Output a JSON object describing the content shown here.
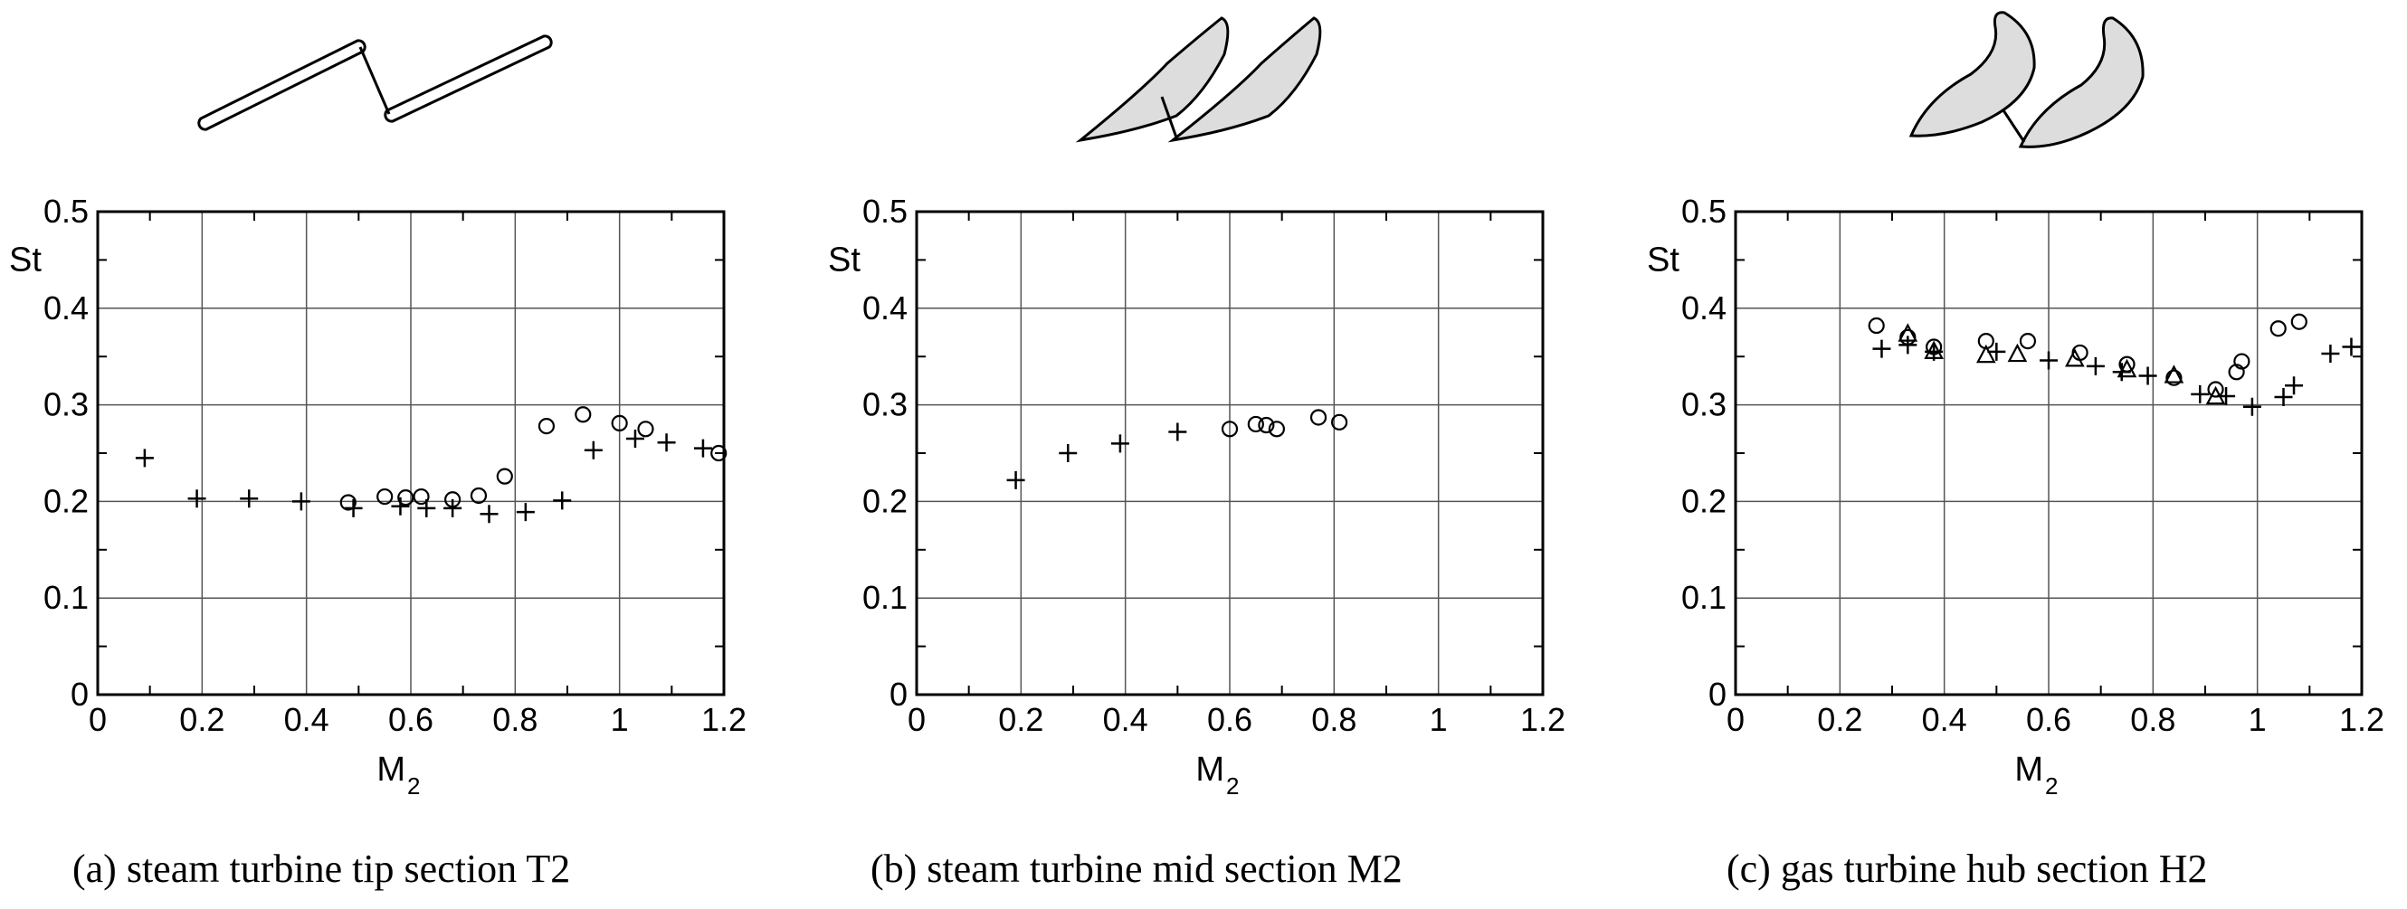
{
  "figure": {
    "captions": [
      "(a) steam turbine tip section T2",
      "(b) steam turbine mid section M2",
      "(c) gas turbine hub section H2"
    ]
  },
  "chart_data": [
    {
      "type": "scatter",
      "xlabel": "M",
      "xlabel_sub": "2",
      "ylabel": "St",
      "xlim": [
        0,
        1.2
      ],
      "ylim": [
        0,
        0.5
      ],
      "xticks": [
        "0",
        "0.2",
        "0.4",
        "0.6",
        "0.8",
        "1",
        "1.2"
      ],
      "yticks": [
        "0",
        "0.1",
        "0.2",
        "0.3",
        "0.4",
        "0.5"
      ],
      "grid": true,
      "series": [
        {
          "marker": "plus",
          "points": [
            [
              0.09,
              0.245
            ],
            [
              0.19,
              0.203
            ],
            [
              0.29,
              0.203
            ],
            [
              0.39,
              0.2
            ],
            [
              0.49,
              0.193
            ],
            [
              0.58,
              0.195
            ],
            [
              0.63,
              0.193
            ],
            [
              0.68,
              0.193
            ],
            [
              0.75,
              0.187
            ],
            [
              0.82,
              0.189
            ],
            [
              0.89,
              0.201
            ],
            [
              0.95,
              0.253
            ],
            [
              1.03,
              0.265
            ],
            [
              1.09,
              0.261
            ],
            [
              1.16,
              0.255
            ]
          ]
        },
        {
          "marker": "circle",
          "points": [
            [
              0.48,
              0.199
            ],
            [
              0.55,
              0.205
            ],
            [
              0.59,
              0.204
            ],
            [
              0.62,
              0.205
            ],
            [
              0.68,
              0.202
            ],
            [
              0.73,
              0.206
            ],
            [
              0.78,
              0.226
            ],
            [
              0.86,
              0.278
            ],
            [
              0.93,
              0.29
            ],
            [
              1.0,
              0.281
            ],
            [
              1.05,
              0.275
            ],
            [
              1.19,
              0.25
            ]
          ]
        }
      ]
    },
    {
      "type": "scatter",
      "xlabel": "M",
      "xlabel_sub": "2",
      "ylabel": "St",
      "xlim": [
        0,
        1.2
      ],
      "ylim": [
        0,
        0.5
      ],
      "xticks": [
        "0",
        "0.2",
        "0.4",
        "0.6",
        "0.8",
        "1",
        "1.2"
      ],
      "yticks": [
        "0",
        "0.1",
        "0.2",
        "0.3",
        "0.4",
        "0.5"
      ],
      "grid": true,
      "series": [
        {
          "marker": "plus",
          "points": [
            [
              0.19,
              0.222
            ],
            [
              0.29,
              0.25
            ],
            [
              0.39,
              0.26
            ],
            [
              0.5,
              0.272
            ]
          ]
        },
        {
          "marker": "circle",
          "points": [
            [
              0.6,
              0.275
            ],
            [
              0.65,
              0.28
            ],
            [
              0.67,
              0.279
            ],
            [
              0.69,
              0.275
            ],
            [
              0.77,
              0.287
            ],
            [
              0.81,
              0.282
            ]
          ]
        }
      ]
    },
    {
      "type": "scatter",
      "xlabel": "M",
      "xlabel_sub": "2",
      "ylabel": "St",
      "xlim": [
        0,
        1.2
      ],
      "ylim": [
        0,
        0.5
      ],
      "xticks": [
        "0",
        "0.2",
        "0.4",
        "0.6",
        "0.8",
        "1",
        "1.2"
      ],
      "yticks": [
        "0",
        "0.1",
        "0.2",
        "0.3",
        "0.4",
        "0.5"
      ],
      "grid": true,
      "series": [
        {
          "marker": "plus",
          "points": [
            [
              0.28,
              0.358
            ],
            [
              0.33,
              0.362
            ],
            [
              0.38,
              0.355
            ],
            [
              0.5,
              0.355
            ],
            [
              0.6,
              0.346
            ],
            [
              0.69,
              0.34
            ],
            [
              0.74,
              0.334
            ],
            [
              0.79,
              0.33
            ],
            [
              0.89,
              0.311
            ],
            [
              0.94,
              0.309
            ],
            [
              0.99,
              0.298
            ],
            [
              1.05,
              0.308
            ],
            [
              1.07,
              0.32
            ],
            [
              1.14,
              0.353
            ],
            [
              1.18,
              0.36
            ]
          ]
        },
        {
          "marker": "circle",
          "points": [
            [
              0.27,
              0.382
            ],
            [
              0.33,
              0.37
            ],
            [
              0.38,
              0.36
            ],
            [
              0.48,
              0.366
            ],
            [
              0.56,
              0.366
            ],
            [
              0.66,
              0.354
            ],
            [
              0.75,
              0.342
            ],
            [
              0.84,
              0.328
            ],
            [
              0.92,
              0.316
            ],
            [
              0.96,
              0.334
            ],
            [
              0.97,
              0.345
            ],
            [
              1.04,
              0.379
            ],
            [
              1.08,
              0.386
            ]
          ]
        },
        {
          "marker": "triangle",
          "points": [
            [
              0.33,
              0.373
            ],
            [
              0.38,
              0.355
            ],
            [
              0.48,
              0.351
            ],
            [
              0.54,
              0.352
            ],
            [
              0.65,
              0.347
            ],
            [
              0.75,
              0.336
            ],
            [
              0.84,
              0.33
            ],
            [
              0.92,
              0.308
            ]
          ]
        }
      ]
    }
  ]
}
